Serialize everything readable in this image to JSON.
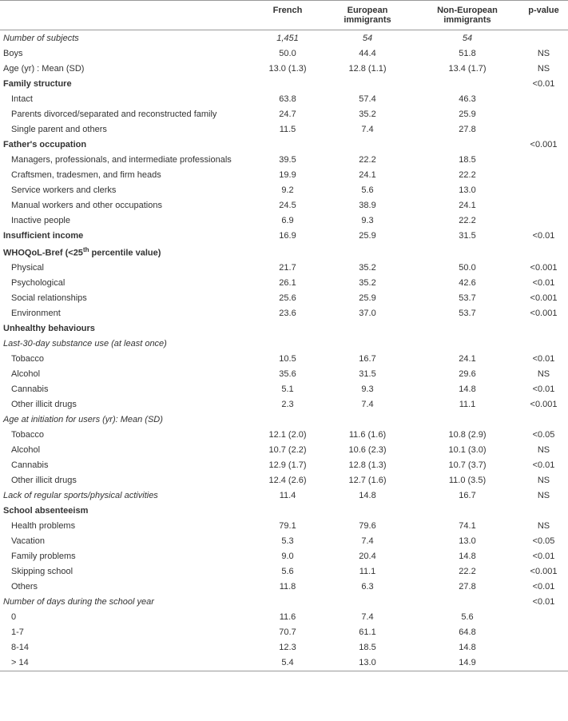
{
  "headers": [
    "",
    "French",
    "European immigrants",
    "Non-European immigrants",
    "p-value"
  ],
  "rows": [
    {
      "label": "Number of subjects",
      "cells": [
        "1,451",
        "54",
        "54",
        ""
      ],
      "italic": true,
      "italicCells": true
    },
    {
      "label": "Boys",
      "cells": [
        "50.0",
        "44.4",
        "51.8",
        "NS"
      ]
    },
    {
      "label": "Age (yr) : Mean (SD)",
      "cells": [
        "13.0 (1.3)",
        "12.8 (1.1)",
        "13.4 (1.7)",
        "NS"
      ]
    },
    {
      "label": "Family structure",
      "cells": [
        "",
        "",
        "",
        "<0.01"
      ],
      "bold": true
    },
    {
      "label": "Intact",
      "cells": [
        "63.8",
        "57.4",
        "46.3",
        ""
      ],
      "indent": true
    },
    {
      "label": "Parents divorced/separated and reconstructed family",
      "cells": [
        "24.7",
        "35.2",
        "25.9",
        ""
      ],
      "indent": true
    },
    {
      "label": "Single parent and others",
      "cells": [
        "11.5",
        "7.4",
        "27.8",
        ""
      ],
      "indent": true
    },
    {
      "label": "Father's occupation",
      "cells": [
        "",
        "",
        "",
        "<0.001"
      ],
      "bold": true
    },
    {
      "label": "Managers, professionals, and intermediate professionals",
      "cells": [
        "39.5",
        "22.2",
        "18.5",
        ""
      ],
      "indent": true
    },
    {
      "label": "Craftsmen, tradesmen, and firm heads",
      "cells": [
        "19.9",
        "24.1",
        "22.2",
        ""
      ],
      "indent": true
    },
    {
      "label": "Service workers and clerks",
      "cells": [
        "9.2",
        "5.6",
        "13.0",
        ""
      ],
      "indent": true
    },
    {
      "label": "Manual workers and other occupations",
      "cells": [
        "24.5",
        "38.9",
        "24.1",
        ""
      ],
      "indent": true
    },
    {
      "label": "Inactive people",
      "cells": [
        "6.9",
        "9.3",
        "22.2",
        ""
      ],
      "indent": true
    },
    {
      "label": "Insufficient income",
      "cells": [
        "16.9",
        "25.9",
        "31.5",
        "<0.01"
      ],
      "bold": true
    },
    {
      "label": "WHOQoL-Bref (<25<sup>th</sup> percentile value)",
      "cells": [
        "",
        "",
        "",
        ""
      ],
      "bold": true,
      "html": true
    },
    {
      "label": "Physical",
      "cells": [
        "21.7",
        "35.2",
        "50.0",
        "<0.001"
      ],
      "indent": true
    },
    {
      "label": "Psychological",
      "cells": [
        "26.1",
        "35.2",
        "42.6",
        "<0.01"
      ],
      "indent": true
    },
    {
      "label": "Social relationships",
      "cells": [
        "25.6",
        "25.9",
        "53.7",
        "<0.001"
      ],
      "indent": true
    },
    {
      "label": "Environment",
      "cells": [
        "23.6",
        "37.0",
        "53.7",
        "<0.001"
      ],
      "indent": true
    },
    {
      "label": "Unhealthy behaviours",
      "cells": [
        "",
        "",
        "",
        ""
      ],
      "bold": true
    },
    {
      "label": "Last-30-day substance use (at least once)",
      "cells": [
        "",
        "",
        "",
        ""
      ],
      "italic": true
    },
    {
      "label": "Tobacco",
      "cells": [
        "10.5",
        "16.7",
        "24.1",
        "<0.01"
      ],
      "indent": true
    },
    {
      "label": "Alcohol",
      "cells": [
        "35.6",
        "31.5",
        "29.6",
        "NS"
      ],
      "indent": true
    },
    {
      "label": "Cannabis",
      "cells": [
        "5.1",
        "9.3",
        "14.8",
        "<0.01"
      ],
      "indent": true
    },
    {
      "label": "Other illicit drugs",
      "cells": [
        "2.3",
        "7.4",
        "11.1",
        "<0.001"
      ],
      "indent": true
    },
    {
      "label": "Age at initiation for users (yr): Mean (SD)",
      "cells": [
        "",
        "",
        "",
        ""
      ],
      "italic": true
    },
    {
      "label": "Tobacco",
      "cells": [
        "12.1 (2.0)",
        "11.6 (1.6)",
        "10.8 (2.9)",
        "<0.05"
      ],
      "indent": true
    },
    {
      "label": "Alcohol",
      "cells": [
        "10.7 (2.2)",
        "10.6 (2.3)",
        "10.1 (3.0)",
        "NS"
      ],
      "indent": true
    },
    {
      "label": "Cannabis",
      "cells": [
        "12.9 (1.7)",
        "12.8 (1.3)",
        "10.7 (3.7)",
        "<0.01"
      ],
      "indent": true
    },
    {
      "label": "Other illicit drugs",
      "cells": [
        "12.4 (2.6)",
        "12.7 (1.6)",
        "11.0 (3.5)",
        "NS"
      ],
      "indent": true
    },
    {
      "label": "Lack of regular sports/physical activities",
      "cells": [
        "11.4",
        "14.8",
        "16.7",
        "NS"
      ],
      "italic": true
    },
    {
      "label": "School absenteeism",
      "cells": [
        "",
        "",
        "",
        ""
      ],
      "bold": true
    },
    {
      "label": "Health problems",
      "cells": [
        "79.1",
        "79.6",
        "74.1",
        "NS"
      ],
      "indent": true
    },
    {
      "label": "Vacation",
      "cells": [
        "5.3",
        "7.4",
        "13.0",
        "<0.05"
      ],
      "indent": true
    },
    {
      "label": "Family problems",
      "cells": [
        "9.0",
        "20.4",
        "14.8",
        "<0.01"
      ],
      "indent": true
    },
    {
      "label": "Skipping school",
      "cells": [
        "5.6",
        "11.1",
        "22.2",
        "<0.001"
      ],
      "indent": true
    },
    {
      "label": "Others",
      "cells": [
        "11.8",
        "6.3",
        "27.8",
        "<0.01"
      ],
      "indent": true
    },
    {
      "label": "Number of days during the school year",
      "cells": [
        "",
        "",
        "",
        "<0.01"
      ],
      "italic": true
    },
    {
      "label": "0",
      "cells": [
        "11.6",
        "7.4",
        "5.6",
        ""
      ],
      "indent": true
    },
    {
      "label": "1-7",
      "cells": [
        "70.7",
        "61.1",
        "64.8",
        ""
      ],
      "indent": true
    },
    {
      "label": "8-14",
      "cells": [
        "12.3",
        "18.5",
        "14.8",
        ""
      ],
      "indent": true
    },
    {
      "label": "> 14",
      "cells": [
        "5.4",
        "13.0",
        "14.9",
        ""
      ],
      "indent": true,
      "last": true
    }
  ]
}
